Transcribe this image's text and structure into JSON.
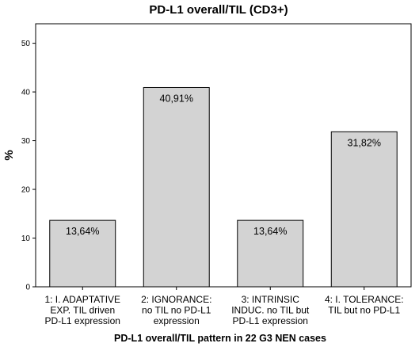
{
  "chart_data": {
    "type": "bar",
    "title": "PD-L1 overall/TIL (CD3+)",
    "xlabel": "PD-L1 overall/TIL pattern in 22 G3 NEN cases",
    "ylabel": "%",
    "ylim": [
      0,
      54
    ],
    "yticks": [
      0,
      10,
      20,
      30,
      40,
      50
    ],
    "categories": [
      [
        "1: I. ADAPTATIVE",
        "EXP. TIL driven",
        "PD-L1 expression"
      ],
      [
        "2: IGNORANCE:",
        "no TIL no PD-L1",
        "expression"
      ],
      [
        "3: INTRINSIC",
        "INDUC. no TIL but",
        "PD-L1 expression"
      ],
      [
        "4: I. TOLERANCE:",
        "TIL but no PD-L1"
      ]
    ],
    "values": [
      13.64,
      40.91,
      13.64,
      31.82
    ],
    "data_labels": [
      "13,64%",
      "40,91%",
      "13,64%",
      "31,82%"
    ],
    "bar_color": "#d3d3d3",
    "grid": false
  }
}
